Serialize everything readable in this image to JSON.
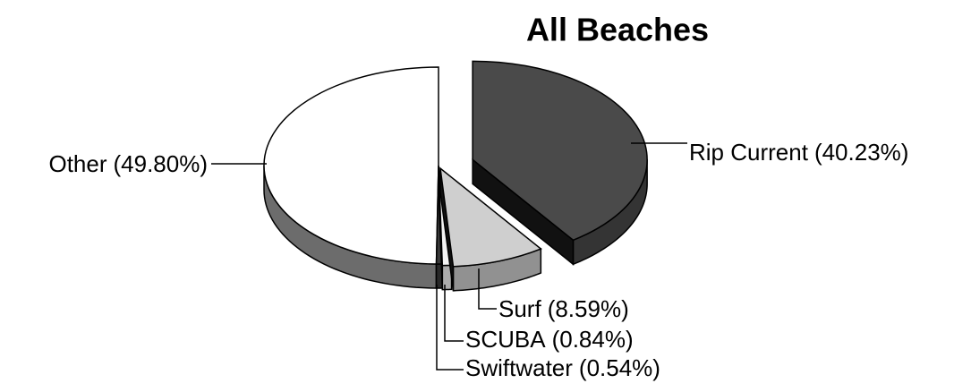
{
  "chart_data": {
    "type": "pie",
    "title": "All Beaches",
    "categories": [
      "Rip Current",
      "Surf",
      "SCUBA",
      "Swiftwater",
      "Other"
    ],
    "values": [
      40.23,
      8.59,
      0.84,
      0.54,
      49.8
    ],
    "value_labels": [
      "(40.23%)",
      "(8.59%)",
      "(0.84%)",
      "(0.54%)",
      "(49.80%)"
    ],
    "colors": [
      "#4a4a4a",
      "#cfcfcf",
      "#f4f4f4",
      "#3a3a3a",
      "#ffffff"
    ]
  }
}
